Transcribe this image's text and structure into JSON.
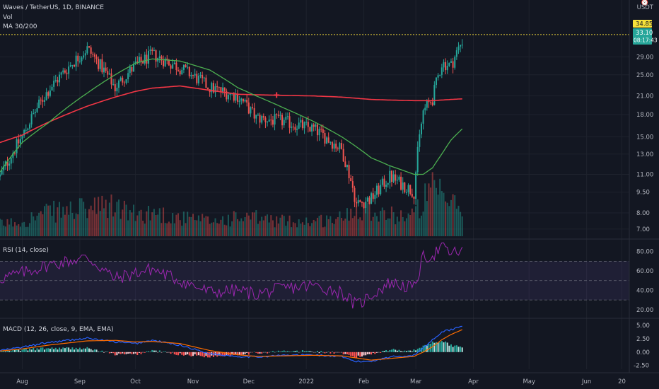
{
  "header": {
    "symbol": "Waves / TetherUS, 1D, BINANCE",
    "vol_label": "Vol",
    "ma_label": "MA 30/200",
    "unit": "USDT",
    "rsi_label": "RSI (14, close)",
    "macd_label": "MACD (12, 26, close, 9, EMA, EMA)"
  },
  "price_tags": {
    "high": "34.85",
    "last": "33.10",
    "countdown": "08:17:43"
  },
  "colors": {
    "background": "#131722",
    "up": "#26a69a",
    "down": "#ef5350",
    "ma30": "#4caf50",
    "ma200": "#f23645",
    "rsi": "#9c27b0",
    "macd": "#2962ff",
    "signal": "#ff6d00"
  },
  "chart_data": {
    "type": "candlestick",
    "price_axis": {
      "scale": "log",
      "ticks": [
        "29.00",
        "25.00",
        "21.00",
        "18.00",
        "15.00",
        "13.00",
        "11.00",
        "9.50",
        "8.00",
        "7.00"
      ]
    },
    "rsi_axis": {
      "ticks": [
        "80.00",
        "60.00",
        "40.00",
        "20.00"
      ],
      "bands": [
        30,
        50,
        70
      ]
    },
    "macd_axis": {
      "ticks": [
        "5.00",
        "2.50",
        "0.00",
        "-2.50"
      ]
    },
    "x_ticks": [
      "Aug",
      "Sep",
      "Oct",
      "Nov",
      "Dec",
      "2022",
      "Feb",
      "Mar",
      "Apr",
      "May",
      "Jun",
      "20"
    ],
    "anchors": [
      {
        "date": "2021-07-20",
        "close": 10.8,
        "ma30": 11.2,
        "ma200": 14.3,
        "vol": 0.2,
        "rsi": 52,
        "macd": 0.3,
        "signal": 0.2
      },
      {
        "date": "2021-08-01",
        "close": 15.0,
        "ma30": 14.3,
        "ma200": 15.2,
        "vol": 0.25,
        "rsi": 58,
        "macd": 0.9,
        "signal": 0.6
      },
      {
        "date": "2021-08-15",
        "close": 22.0,
        "ma30": 16.8,
        "ma200": 16.9,
        "vol": 0.4,
        "rsi": 66,
        "macd": 1.8,
        "signal": 1.3
      },
      {
        "date": "2021-09-05",
        "close": 31.0,
        "ma30": 21.5,
        "ma200": 19.3,
        "vol": 0.45,
        "rsi": 74,
        "macd": 2.6,
        "signal": 2.1
      },
      {
        "date": "2021-09-20",
        "close": 22.5,
        "ma30": 25.0,
        "ma200": 20.8,
        "vol": 0.5,
        "rsi": 52,
        "macd": 1.9,
        "signal": 2.2
      },
      {
        "date": "2021-10-01",
        "close": 27.0,
        "ma30": 27.5,
        "ma200": 21.8,
        "vol": 0.35,
        "rsi": 58,
        "macd": 1.6,
        "signal": 1.9
      },
      {
        "date": "2021-10-10",
        "close": 29.5,
        "ma30": 28.5,
        "ma200": 22.4,
        "vol": 0.4,
        "rsi": 62,
        "macd": 2.2,
        "signal": 2.0
      },
      {
        "date": "2021-10-25",
        "close": 26.5,
        "ma30": 28.0,
        "ma200": 22.8,
        "vol": 0.3,
        "rsi": 50,
        "macd": 1.3,
        "signal": 1.6
      },
      {
        "date": "2021-11-10",
        "close": 22.5,
        "ma30": 26.0,
        "ma200": 22.0,
        "vol": 0.25,
        "rsi": 38,
        "macd": -0.3,
        "signal": 0.3
      },
      {
        "date": "2021-11-25",
        "close": 21.0,
        "ma30": 22.5,
        "ma200": 21.3,
        "vol": 0.3,
        "rsi": 40,
        "macd": -0.8,
        "signal": -0.5
      },
      {
        "date": "2021-12-05",
        "close": 17.5,
        "ma30": 21.0,
        "ma200": 21.2,
        "vol": 0.3,
        "rsi": 36,
        "macd": -0.9,
        "signal": -0.8
      },
      {
        "date": "2021-12-20",
        "close": 17.0,
        "ma30": 19.0,
        "ma200": 21.1,
        "vol": 0.25,
        "rsi": 42,
        "macd": -0.6,
        "signal": -0.7
      },
      {
        "date": "2022-01-05",
        "close": 16.0,
        "ma30": 17.0,
        "ma200": 21.0,
        "vol": 0.25,
        "rsi": 45,
        "macd": -0.5,
        "signal": -0.6
      },
      {
        "date": "2022-01-20",
        "close": 13.5,
        "ma30": 15.0,
        "ma200": 20.8,
        "vol": 0.3,
        "rsi": 38,
        "macd": -0.9,
        "signal": -0.7
      },
      {
        "date": "2022-01-28",
        "close": 8.6,
        "ma30": 13.8,
        "ma200": 20.6,
        "vol": 0.5,
        "rsi": 24,
        "macd": -1.8,
        "signal": -1.1
      },
      {
        "date": "2022-02-05",
        "close": 9.0,
        "ma30": 12.6,
        "ma200": 20.4,
        "vol": 0.45,
        "rsi": 35,
        "macd": -1.7,
        "signal": -1.5
      },
      {
        "date": "2022-02-15",
        "close": 10.8,
        "ma30": 11.8,
        "ma200": 20.3,
        "vol": 0.35,
        "rsi": 48,
        "macd": -0.9,
        "signal": -1.2
      },
      {
        "date": "2022-02-28",
        "close": 9.5,
        "ma30": 11.0,
        "ma200": 20.2,
        "vol": 0.35,
        "rsi": 42,
        "macd": -0.6,
        "signal": -0.8
      },
      {
        "date": "2022-03-05",
        "close": 18.5,
        "ma30": 11.0,
        "ma200": 20.2,
        "vol": 0.6,
        "rsi": 74,
        "macd": 0.8,
        "signal": 0.0
      },
      {
        "date": "2022-03-10",
        "close": 20.5,
        "ma30": 11.6,
        "ma200": 20.2,
        "vol": 0.75,
        "rsi": 76,
        "macd": 2.3,
        "signal": 1.0
      },
      {
        "date": "2022-03-15",
        "close": 27.5,
        "ma30": 13.0,
        "ma200": 20.3,
        "vol": 0.65,
        "rsi": 85,
        "macd": 3.8,
        "signal": 2.3
      },
      {
        "date": "2022-03-20",
        "close": 27.0,
        "ma30": 14.6,
        "ma200": 20.4,
        "vol": 0.55,
        "rsi": 78,
        "macd": 4.2,
        "signal": 3.3
      },
      {
        "date": "2022-03-26",
        "close": 33.1,
        "ma30": 16.0,
        "ma200": 20.5,
        "vol": 0.45,
        "rsi": 81,
        "macd": 4.9,
        "signal": 4.2
      }
    ]
  }
}
